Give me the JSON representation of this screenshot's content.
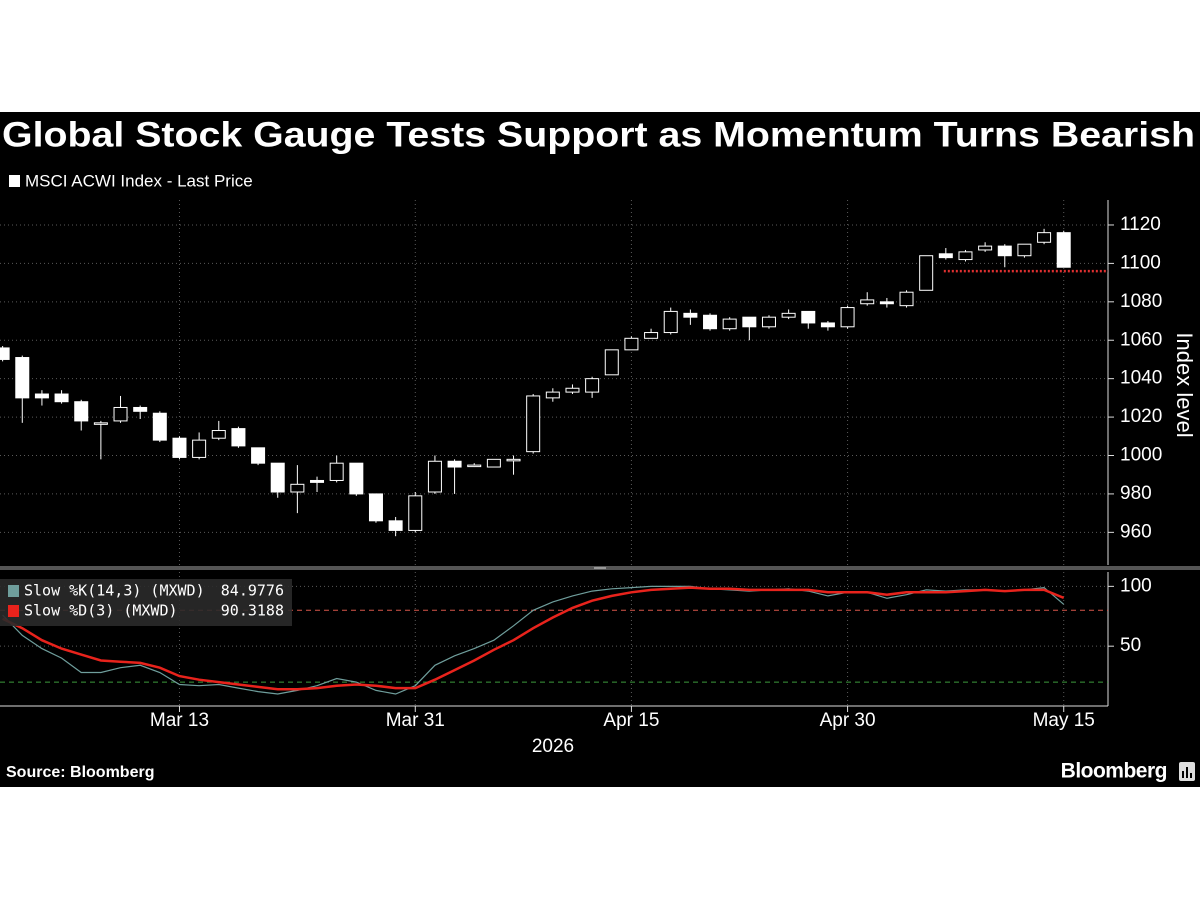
{
  "chart_data": [
    {
      "type": "candlestick",
      "title": "Global Stock Gauge Tests Support as Momentum Turns Bearish",
      "legend": "MSCI ACWI Index - Last Price",
      "y_label": "Index level",
      "categories": [
        null,
        null,
        null,
        null,
        null,
        null,
        null,
        null,
        null,
        "Mar 13",
        null,
        null,
        null,
        null,
        null,
        null,
        null,
        null,
        null,
        null,
        null,
        "Mar 31",
        null,
        null,
        null,
        null,
        null,
        null,
        null,
        null,
        null,
        null,
        "Apr 15",
        null,
        null,
        null,
        null,
        null,
        null,
        null,
        null,
        null,
        null,
        "Apr 30",
        null,
        null,
        null,
        null,
        null,
        null,
        null,
        null,
        null,
        null,
        "May 15"
      ],
      "x_label_year": "2026",
      "open": [
        1056,
        1051,
        1032,
        1032,
        1028,
        1017,
        1018,
        1025,
        1022,
        1009,
        999,
        1009,
        1014,
        1004,
        996,
        981,
        987,
        987,
        996,
        980,
        966,
        961,
        981,
        997,
        995,
        994,
        998,
        1002,
        1030,
        1033,
        1033,
        1042,
        1055,
        1061,
        1064,
        1074,
        1073,
        1066,
        1072,
        1067,
        1072,
        1075,
        1069,
        1067,
        1079,
        1080,
        1078,
        1086,
        1105,
        1102,
        1107,
        1109,
        1104,
        1111,
        1116
      ],
      "high": [
        1057,
        1052,
        1034,
        1034,
        1029,
        1018,
        1031,
        1026,
        1023,
        1010,
        1012,
        1018,
        1015,
        1004,
        996,
        995,
        989,
        1000,
        996,
        980,
        968,
        981,
        1000,
        998,
        996,
        998,
        1000,
        1032,
        1035,
        1037,
        1041,
        1055,
        1062,
        1066,
        1077,
        1076,
        1074,
        1072,
        1072,
        1073,
        1076,
        1075,
        1070,
        1078,
        1085,
        1082,
        1086,
        1104,
        1108,
        1107,
        1111,
        1110,
        1110,
        1118,
        1117
      ],
      "low": [
        1049,
        1017,
        1026,
        1027,
        1013,
        998,
        1017,
        1019,
        1007,
        998,
        998,
        1008,
        1004,
        995,
        978,
        970,
        981,
        986,
        979,
        965,
        958,
        960,
        980,
        980,
        994,
        994,
        990,
        1001,
        1028,
        1032,
        1030,
        1042,
        1055,
        1061,
        1063,
        1068,
        1065,
        1065,
        1060,
        1066,
        1071,
        1066,
        1065,
        1066,
        1078,
        1077,
        1077,
        1086,
        1102,
        1101,
        1106,
        1098,
        1103,
        1110,
        1098
      ],
      "close": [
        1050,
        1030,
        1030,
        1028,
        1018,
        1017,
        1025,
        1023,
        1008,
        999,
        1008,
        1013,
        1005,
        996,
        981,
        985,
        986,
        996,
        980,
        966,
        961,
        979,
        997,
        994,
        995,
        998,
        998,
        1031,
        1033,
        1035,
        1040,
        1055,
        1061,
        1064,
        1075,
        1072,
        1066,
        1071,
        1067,
        1072,
        1074,
        1069,
        1067,
        1077,
        1081,
        1079,
        1085,
        1104,
        1103,
        1106,
        1109,
        1104,
        1110,
        1116,
        1098
      ],
      "support_level": 1096,
      "support_color": "#e03030",
      "ylim": [
        943,
        1133
      ],
      "yticks": [
        960,
        980,
        1000,
        1020,
        1040,
        1060,
        1080,
        1100,
        1120
      ],
      "grid": true
    },
    {
      "type": "line",
      "series": [
        {
          "name": "Slow %K(14,3) (MXWD)",
          "color": "#6f9e9c",
          "values": [
            76,
            59,
            48,
            40,
            28,
            28,
            32,
            34,
            28,
            18,
            17,
            18,
            15,
            12,
            10,
            13,
            17,
            23,
            20,
            13,
            10,
            17,
            34,
            42,
            48,
            55,
            67,
            80,
            87,
            92,
            96,
            98,
            99,
            100,
            100,
            100,
            98,
            97,
            96,
            97,
            98,
            96,
            92,
            95,
            95,
            90,
            93,
            97,
            96,
            97,
            97,
            96,
            97,
            99,
            84.9776
          ]
        },
        {
          "name": "Slow %D(3) (MXWD)",
          "color": "#e8231c",
          "values": [
            73,
            65,
            55,
            48,
            43,
            38,
            37,
            36,
            32,
            25,
            22,
            20,
            18,
            16,
            14,
            14,
            15,
            17,
            18,
            17,
            15,
            15,
            22,
            30,
            38,
            47,
            55,
            65,
            74,
            82,
            88,
            92,
            95,
            97,
            98,
            99,
            98,
            98,
            97,
            97,
            97,
            97,
            95,
            95,
            95,
            93,
            95,
            95,
            95,
            96,
            97,
            96,
            97,
            97,
            90.3188
          ]
        }
      ],
      "levels": [
        {
          "value": 80,
          "color": "#d8574a"
        },
        {
          "value": 20,
          "color": "#3d9a3d"
        }
      ],
      "ylim": [
        0,
        112
      ],
      "yticks": [
        50,
        100
      ],
      "grid": true
    }
  ],
  "source": "Source: Bloomberg",
  "brand": "Bloomberg"
}
